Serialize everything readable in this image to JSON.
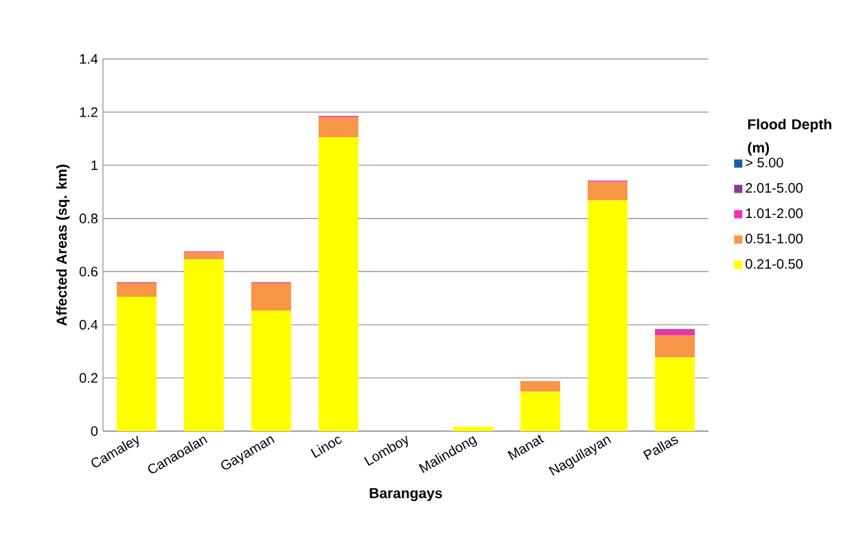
{
  "chart_data": {
    "type": "bar",
    "stacked": true,
    "xlabel": "Barangays",
    "ylabel": "Affected Areas (sq. km)",
    "legend_title": "Flood Depth (m)",
    "categories": [
      "Camaley",
      "Canaoalan",
      "Gayaman",
      "Linoc",
      "Lomboy",
      "Malindong",
      "Manat",
      "Naguilayan",
      "Pallas"
    ],
    "series": [
      {
        "name": "0.21-0.50",
        "color": "#ffff00",
        "values": [
          0.505,
          0.646,
          0.454,
          1.106,
          0,
          0.017,
          0.148,
          0.868,
          0.277
        ]
      },
      {
        "name": "0.51-1.00",
        "color": "#f79646",
        "values": [
          0.052,
          0.026,
          0.103,
          0.074,
          0,
          0,
          0.04,
          0.07,
          0.083
        ]
      },
      {
        "name": "1.01-2.00",
        "color": "#ec35ac",
        "values": [
          0.003,
          0.004,
          0.003,
          0.005,
          0,
          0,
          0,
          0.004,
          0.022
        ]
      },
      {
        "name": "2.01-5.00",
        "color": "#8e3b97",
        "values": [
          0,
          0,
          0,
          0,
          0,
          0,
          0,
          0,
          0.002
        ]
      },
      {
        "name": "> 5.00",
        "color": "#1f5aa6",
        "values": [
          0,
          0,
          0,
          0,
          0,
          0,
          0,
          0,
          0
        ]
      }
    ],
    "ylim": [
      0,
      1.4
    ],
    "yticks": [
      0,
      0.2,
      0.4,
      0.6,
      0.8,
      1,
      1.2,
      1.4
    ],
    "grid": "y",
    "legend": "right"
  }
}
